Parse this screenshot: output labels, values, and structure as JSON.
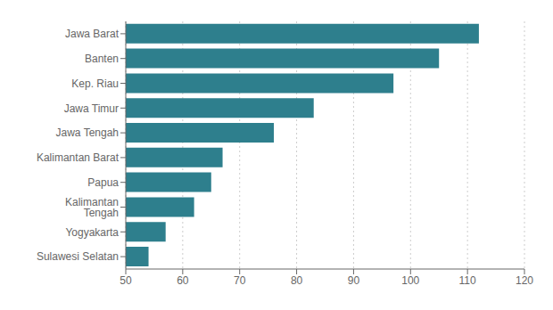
{
  "chart_data": {
    "type": "bar",
    "orientation": "horizontal",
    "categories": [
      "Sulawesi Selatan",
      "Yogyakarta",
      "Kalimantan Tengah",
      "Papua",
      "Kalimantan Barat",
      "Jawa Tengah",
      "Jawa Timur",
      "Kep. Riau",
      "Banten",
      "Jawa Barat"
    ],
    "values": [
      54,
      57,
      62,
      65,
      67,
      76,
      83,
      97,
      105,
      112
    ],
    "color": "#2e7f8d",
    "xlim": [
      50,
      120
    ],
    "xticks": [
      50,
      60,
      70,
      80,
      90,
      100,
      110,
      120
    ],
    "grid": true
  }
}
